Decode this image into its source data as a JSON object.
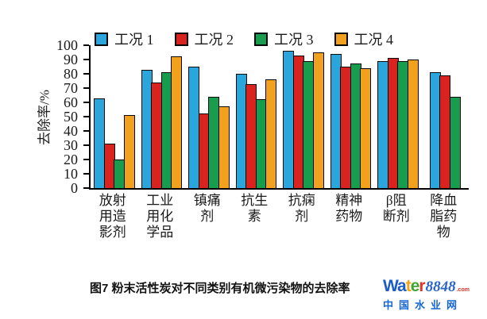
{
  "chart_data": {
    "type": "bar",
    "ylabel": "去除率/%",
    "ylim": [
      0,
      100
    ],
    "yticks": [
      0,
      10,
      20,
      30,
      40,
      50,
      60,
      70,
      80,
      90,
      100
    ],
    "grid": false,
    "legend_position": "top",
    "categories": [
      "放射用造影剂",
      "工业用化学品",
      "镇痛剂",
      "抗生素",
      "抗痫剂",
      "精神药物",
      "β阻断剂",
      "降血脂药物"
    ],
    "series": [
      {
        "name": "工况 1",
        "color": "#2BA6DC",
        "values": [
          63,
          83,
          85,
          80,
          96,
          94,
          89,
          81
        ]
      },
      {
        "name": "工况 2",
        "color": "#D8231F",
        "values": [
          31,
          74,
          52,
          73,
          93,
          85,
          91,
          79
        ]
      },
      {
        "name": "工况 3",
        "color": "#189C4D",
        "values": [
          20,
          81,
          64,
          62,
          89,
          87,
          89,
          64
        ]
      },
      {
        "name": "工况 4",
        "color": "#F2A11E",
        "values": [
          51,
          92,
          57,
          76,
          95,
          84,
          90,
          null
        ]
      }
    ]
  },
  "caption": "图7  粉末活性炭对不同类别有机微污染物的去除率",
  "logo": {
    "parts": [
      {
        "text": "Wa",
        "color": "#1A5BC8"
      },
      {
        "text": "t",
        "color": "#F6A314"
      },
      {
        "text": "e",
        "color": "#3FA431"
      },
      {
        "text": "r",
        "color": "#E23226"
      }
    ],
    "number": "8848",
    "number_color": "#2A63C9",
    "dotcom": ".com",
    "dotcom_color": "#E02D20",
    "subtitle": "中国水业网",
    "subtitle_color": "#1766D2"
  }
}
